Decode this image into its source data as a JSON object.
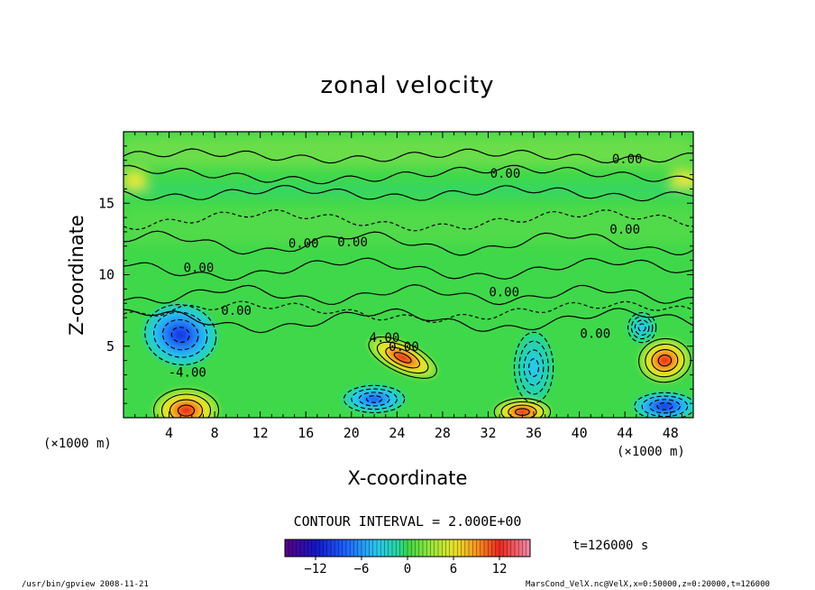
{
  "chart_data": {
    "type": "heatmap",
    "title": "zonal velocity",
    "xlabel": "X-coordinate",
    "ylabel": "Z-coordinate",
    "x_unit_left": "(×1000 m)",
    "x_unit_right": "(×1000 m)",
    "x_ticks": [
      "4",
      "8",
      "12",
      "16",
      "20",
      "24",
      "28",
      "32",
      "36",
      "40",
      "44",
      "48"
    ],
    "x_tick_values": [
      4,
      8,
      12,
      16,
      20,
      24,
      28,
      32,
      36,
      40,
      44,
      48
    ],
    "y_ticks": [
      "5",
      "10",
      "15"
    ],
    "y_tick_values": [
      5,
      10,
      15
    ],
    "xlim": [
      0,
      50
    ],
    "ylim": [
      0,
      20
    ],
    "contour_interval_label": "CONTOUR INTERVAL = 2.000E+00",
    "contour_labels": [
      {
        "text": "0.00",
        "x": 33.5,
        "z": 17.1
      },
      {
        "text": "0.00",
        "x": 44.2,
        "z": 18.1
      },
      {
        "text": "0.00",
        "x": 44.0,
        "z": 13.2
      },
      {
        "text": "0.00",
        "x": 15.8,
        "z": 12.2
      },
      {
        "text": "0.00",
        "x": 20.1,
        "z": 12.3
      },
      {
        "text": "0.00",
        "x": 6.6,
        "z": 10.5
      },
      {
        "text": "0.00",
        "x": 33.4,
        "z": 8.8
      },
      {
        "text": "0.00",
        "x": 9.9,
        "z": 7.5
      },
      {
        "text": "0.00",
        "x": 41.4,
        "z": 5.9
      },
      {
        "text": "0.00",
        "x": 24.6,
        "z": 5.0
      },
      {
        "text": "4.00",
        "x": 22.9,
        "z": 5.6
      },
      {
        "text": "-4.00",
        "x": 5.6,
        "z": 3.2
      }
    ],
    "features": [
      {
        "kind": "negative",
        "x": 5,
        "z": 5.8,
        "value": -10
      },
      {
        "kind": "positive",
        "x": 5.5,
        "z": 0.5,
        "value": 12
      },
      {
        "kind": "positive",
        "x": 24.5,
        "z": 4.2,
        "value": 12
      },
      {
        "kind": "negative",
        "x": 22,
        "z": 1.3,
        "value": -8
      },
      {
        "kind": "negative",
        "x": 36,
        "z": 3.5,
        "value": -4
      },
      {
        "kind": "positive",
        "x": 35,
        "z": 0.4,
        "value": 12
      },
      {
        "kind": "positive",
        "x": 47.5,
        "z": 4.0,
        "value": 12
      },
      {
        "kind": "negative",
        "x": 47.5,
        "z": 0.8,
        "value": -10
      },
      {
        "kind": "negative",
        "x": 45.5,
        "z": 6.3,
        "value": -4
      }
    ],
    "colorbar": {
      "min": -16,
      "max": 16,
      "ticks": [
        "−12",
        "−6",
        "0",
        "6",
        "12"
      ],
      "tick_values": [
        -12,
        -6,
        0,
        6,
        12
      ]
    },
    "time_label": "t=126000  s"
  },
  "footer": {
    "left": "/usr/bin/gpview  2008-11-21",
    "right": "MarsCond_VelX.nc@VelX,x=0:50000,z=0:20000,t=126000"
  }
}
